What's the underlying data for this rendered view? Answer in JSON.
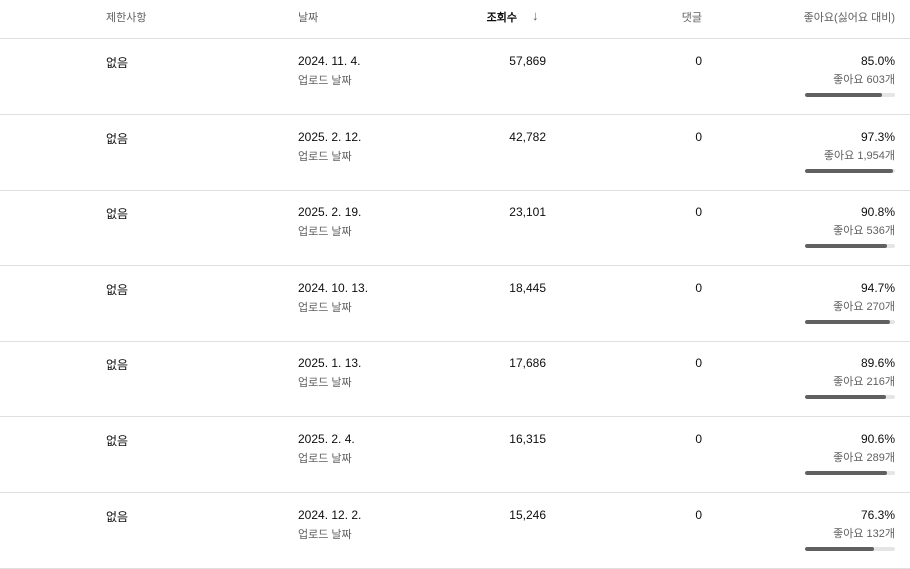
{
  "header": {
    "restrictions": "제한사항",
    "date": "날짜",
    "views": "조회수",
    "sort_icon": "arrow-down-icon",
    "comments": "댓글",
    "likes": "좋아요(싫어요 대비)"
  },
  "rows": [
    {
      "restriction": "없음",
      "date": "2024. 11. 4.",
      "date_sub": "업로드 날짜",
      "views": "57,869",
      "comments": "0",
      "like_pct": "85.0%",
      "likes": "좋아요 603개",
      "ratio": 85.0
    },
    {
      "restriction": "없음",
      "date": "2025. 2. 12.",
      "date_sub": "업로드 날짜",
      "views": "42,782",
      "comments": "0",
      "like_pct": "97.3%",
      "likes": "좋아요 1,954개",
      "ratio": 97.3
    },
    {
      "restriction": "없음",
      "date": "2025. 2. 19.",
      "date_sub": "업로드 날짜",
      "views": "23,101",
      "comments": "0",
      "like_pct": "90.8%",
      "likes": "좋아요 536개",
      "ratio": 90.8
    },
    {
      "restriction": "없음",
      "date": "2024. 10. 13.",
      "date_sub": "업로드 날짜",
      "views": "18,445",
      "comments": "0",
      "like_pct": "94.7%",
      "likes": "좋아요 270개",
      "ratio": 94.7
    },
    {
      "restriction": "없음",
      "date": "2025. 1. 13.",
      "date_sub": "업로드 날짜",
      "views": "17,686",
      "comments": "0",
      "like_pct": "89.6%",
      "likes": "좋아요 216개",
      "ratio": 89.6
    },
    {
      "restriction": "없음",
      "date": "2025. 2. 4.",
      "date_sub": "업로드 날짜",
      "views": "16,315",
      "comments": "0",
      "like_pct": "90.6%",
      "likes": "좋아요 289개",
      "ratio": 90.6
    },
    {
      "restriction": "없음",
      "date": "2024. 12. 2.",
      "date_sub": "업로드 날짜",
      "views": "15,246",
      "comments": "0",
      "like_pct": "76.3%",
      "likes": "좋아요 132개",
      "ratio": 76.3
    }
  ]
}
